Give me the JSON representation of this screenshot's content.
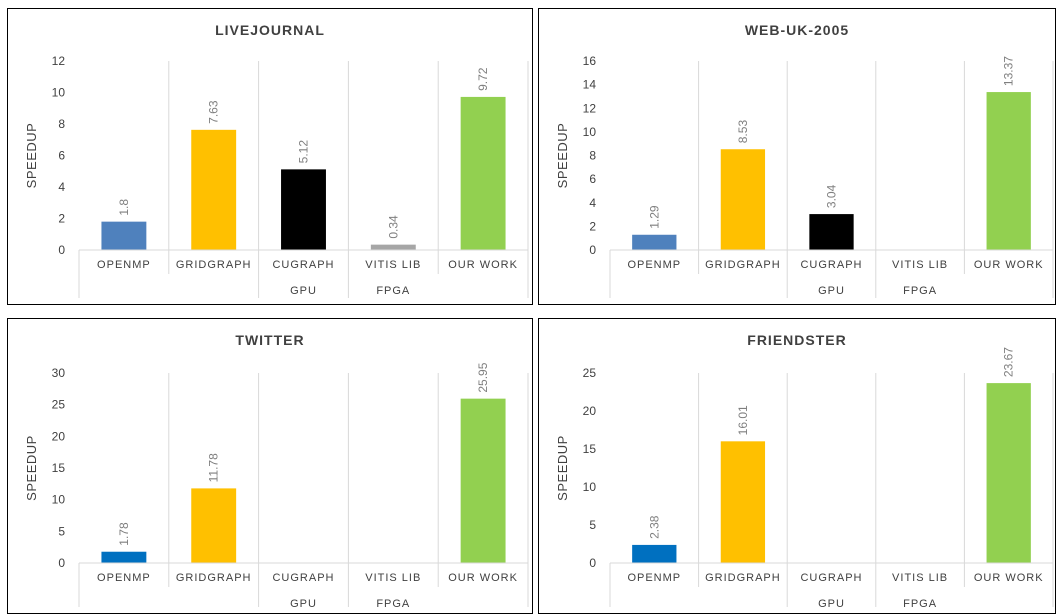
{
  "chart_data": [
    {
      "type": "bar",
      "title": "LIVEJOURNAL",
      "ylabel": "SPEEDUP",
      "ylim": [
        0,
        12
      ],
      "yticks": [
        0,
        2,
        4,
        6,
        8,
        10,
        12
      ],
      "categories": [
        "OPENMP",
        "GRIDGRAPH",
        "CUGRAPH",
        "VITIS LIB",
        "OUR WORK"
      ],
      "values": [
        1.8,
        7.63,
        5.12,
        0.34,
        9.72
      ],
      "labels": [
        "1.8",
        "7.63",
        "5.12",
        "0.34",
        "9.72"
      ],
      "colors": [
        "#4f81bd",
        "#ffc000",
        "#000000",
        "#a6a6a6",
        "#92d050"
      ],
      "groups": [
        {
          "label": "GPU",
          "category": 2
        },
        {
          "label": "FPGA",
          "category": 3
        }
      ],
      "grid": "vertical separators"
    },
    {
      "type": "bar",
      "title": "WEB-UK-2005",
      "ylabel": "SPEEDUP",
      "ylim": [
        0,
        16
      ],
      "yticks": [
        0,
        2,
        4,
        6,
        8,
        10,
        12,
        14,
        16
      ],
      "categories": [
        "OPENMP",
        "GRIDGRAPH",
        "CUGRAPH",
        "VITIS LIB",
        "OUR WORK"
      ],
      "values": [
        1.29,
        8.53,
        3.04,
        null,
        13.37
      ],
      "labels": [
        "1.29",
        "8.53",
        "3.04",
        "",
        "13.37"
      ],
      "colors": [
        "#4f81bd",
        "#ffc000",
        "#000000",
        "#a6a6a6",
        "#92d050"
      ],
      "groups": [
        {
          "label": "GPU",
          "category": 2
        },
        {
          "label": "FPGA",
          "category": 3
        }
      ],
      "grid": "vertical separators"
    },
    {
      "type": "bar",
      "title": "TWITTER",
      "ylabel": "SPEEDUP",
      "ylim": [
        0,
        30
      ],
      "yticks": [
        0,
        5,
        10,
        15,
        20,
        25,
        30
      ],
      "categories": [
        "OPENMP",
        "GRIDGRAPH",
        "CUGRAPH",
        "VITIS LIB",
        "OUR WORK"
      ],
      "values": [
        1.78,
        11.78,
        null,
        null,
        25.95
      ],
      "labels": [
        "1.78",
        "11.78",
        "",
        "",
        "25.95"
      ],
      "colors": [
        "#0070c0",
        "#ffc000",
        "#000000",
        "#a6a6a6",
        "#92d050"
      ],
      "groups": [
        {
          "label": "GPU",
          "category": 2
        },
        {
          "label": "FPGA",
          "category": 3
        }
      ],
      "grid": "vertical separators"
    },
    {
      "type": "bar",
      "title": "FRIENDSTER",
      "ylabel": "SPEEDUP",
      "ylim": [
        0,
        25
      ],
      "yticks": [
        0,
        5,
        10,
        15,
        20,
        25
      ],
      "categories": [
        "OPENMP",
        "GRIDGRAPH",
        "CUGRAPH",
        "VITIS LIB",
        "OUR WORK"
      ],
      "values": [
        2.38,
        16.01,
        null,
        null,
        23.67
      ],
      "labels": [
        "2.38",
        "16.01",
        "",
        "",
        "23.67"
      ],
      "colors": [
        "#0070c0",
        "#ffc000",
        "#000000",
        "#a6a6a6",
        "#92d050"
      ],
      "groups": [
        {
          "label": "GPU",
          "category": 2
        },
        {
          "label": "FPGA",
          "category": 3
        }
      ],
      "grid": "vertical separators"
    }
  ]
}
